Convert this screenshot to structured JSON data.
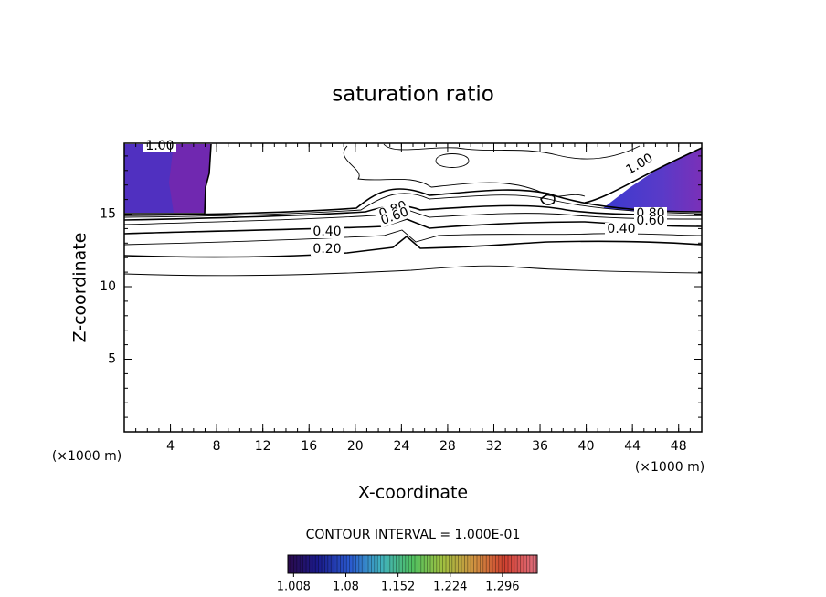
{
  "chart_data": {
    "type": "contour",
    "title": "saturation ratio",
    "xlabel": "X-coordinate",
    "ylabel": "Z-coordinate",
    "x_unit": "(×1000 m)",
    "xlim": [
      0,
      50
    ],
    "ylim": [
      0,
      20
    ],
    "xticks": [
      4,
      8,
      12,
      16,
      20,
      24,
      28,
      32,
      36,
      40,
      44,
      48
    ],
    "yticks": [
      5,
      10,
      15
    ],
    "contour_levels": [
      0.1,
      {
        "value": 0.2,
        "label": "0.20"
      },
      0.3,
      {
        "value": 0.4,
        "label": "0.40"
      },
      0.5,
      {
        "value": 0.6,
        "label": "0.60"
      },
      0.7,
      {
        "value": 0.8,
        "label": "0.80"
      },
      0.9,
      {
        "value": 1.0,
        "label": "1.00"
      }
    ],
    "contour_interval": "CONTOUR INTERVAL = 1.000E-01",
    "colorbar": {
      "lim": [
        1.0,
        1.344
      ],
      "ticks": [
        1.008,
        1.08,
        1.152,
        1.224,
        1.296
      ]
    }
  }
}
